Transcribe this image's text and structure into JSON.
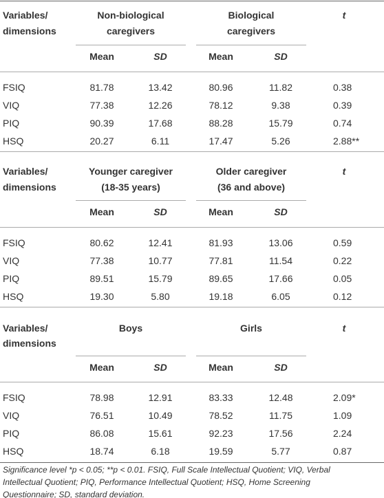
{
  "sections": [
    {
      "label_header": [
        "Variables/",
        "dimensions"
      ],
      "groups": [
        [
          "Non-biological",
          "caregivers"
        ],
        [
          "Biological",
          "caregivers"
        ]
      ],
      "columns": [
        "Mean",
        "SD",
        "Mean",
        "SD"
      ],
      "t_header": "t",
      "rows": [
        [
          "FSIQ",
          "81.78",
          "13.42",
          "80.96",
          "11.82",
          "0.38"
        ],
        [
          "VIQ",
          "77.38",
          "12.26",
          "78.12",
          "9.38",
          "0.39"
        ],
        [
          "PIQ",
          "90.39",
          "17.68",
          "88.28",
          "15.79",
          "0.74"
        ],
        [
          "HSQ",
          "20.27",
          "6.11",
          "17.47",
          "5.26",
          "2.88**"
        ]
      ]
    },
    {
      "label_header": [
        "Variables/",
        "dimensions"
      ],
      "groups": [
        [
          "Younger caregiver",
          "(18-35 years)"
        ],
        [
          "Older caregiver",
          "(36 and above)"
        ]
      ],
      "columns": [
        "Mean",
        "SD",
        "Mean",
        "SD"
      ],
      "t_header": "t",
      "rows": [
        [
          "FSIQ",
          "80.62",
          "12.41",
          "81.93",
          "13.06",
          "0.59"
        ],
        [
          "VIQ",
          "77.38",
          "10.77",
          "77.81",
          "11.54",
          "0.22"
        ],
        [
          "PIQ",
          "89.51",
          "15.79",
          "89.65",
          "17.66",
          "0.05"
        ],
        [
          "HSQ",
          "19.30",
          "5.80",
          "19.18",
          "6.05",
          "0.12"
        ]
      ]
    },
    {
      "label_header": [
        "Variables/",
        "dimensions"
      ],
      "groups": [
        [
          "Boys"
        ],
        [
          "Girls"
        ]
      ],
      "columns": [
        "Mean",
        "SD",
        "Mean",
        "SD"
      ],
      "t_header": "t",
      "rows": [
        [
          "FSIQ",
          "78.98",
          "12.91",
          "83.33",
          "12.48",
          "2.09*"
        ],
        [
          "VIQ",
          "76.51",
          "10.49",
          "78.52",
          "11.75",
          "1.09"
        ],
        [
          "PIQ",
          "86.08",
          "15.61",
          "92.23",
          "17.56",
          "2.24"
        ],
        [
          "HSQ",
          "18.74",
          "6.18",
          "19.59",
          "5.77",
          "0.87"
        ]
      ]
    }
  ],
  "footnote": [
    "Significance level *p < 0.05; **p < 0.01. FSIQ, Full Scale Intellectual Quotient; VIQ, Verbal",
    "Intellectual Quotient; PIQ, Performance Intellectual Quotient; HSQ, Home Screening",
    "Questionnaire; SD, standard deviation."
  ]
}
